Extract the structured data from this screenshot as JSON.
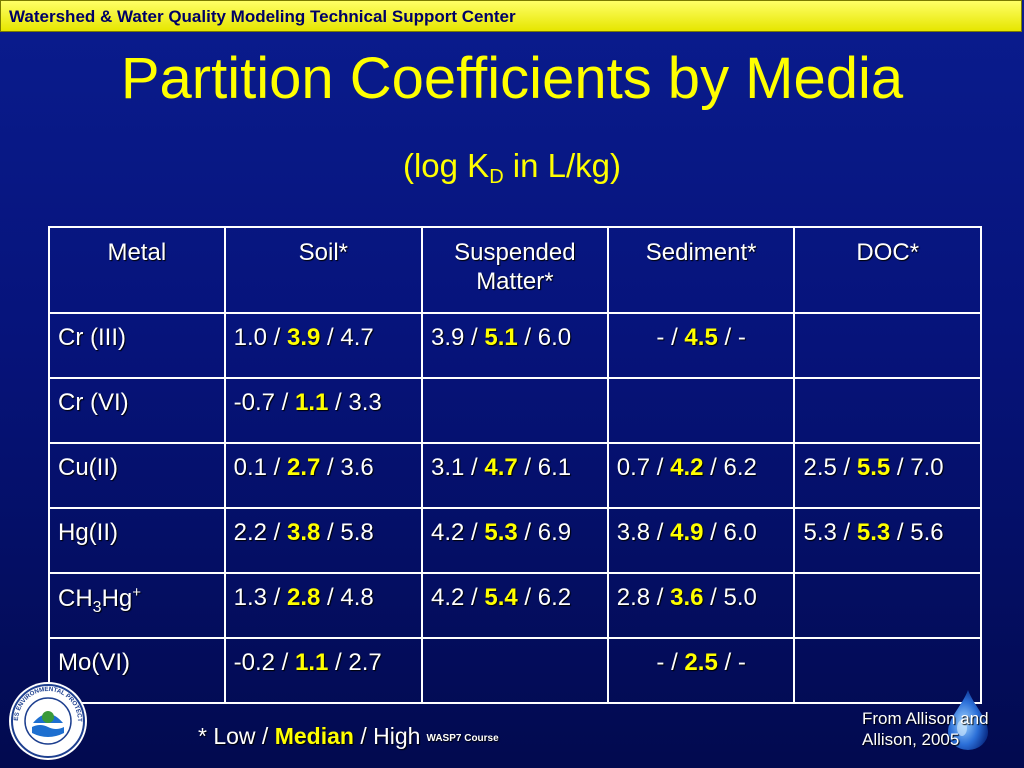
{
  "banner": {
    "text": "Watershed & Water Quality Modeling Technical Support Center"
  },
  "slide": {
    "title": "Partition Coefficients by Media",
    "subtitle_prefix": "(log K",
    "subtitle_sub": "D",
    "subtitle_suffix": " in L/kg)"
  },
  "table": {
    "headers": [
      "Metal",
      "Soil*",
      "Suspended Matter*",
      "Sediment*",
      "DOC*"
    ],
    "rows": [
      {
        "metal": "Cr (III)",
        "cells": [
          {
            "low": "1.0",
            "median": "3.9",
            "high": "4.7"
          },
          {
            "low": "3.9",
            "median": "5.1",
            "high": "6.0"
          },
          {
            "low": "-",
            "median": "4.5",
            "high": "-"
          },
          null
        ]
      },
      {
        "metal": "Cr (VI)",
        "cells": [
          {
            "low": "-0.7",
            "median": "1.1",
            "high": "3.3"
          },
          null,
          null,
          null
        ]
      },
      {
        "metal": "Cu(II)",
        "cells": [
          {
            "low": "0.1",
            "median": "2.7",
            "high": "3.6"
          },
          {
            "low": "3.1",
            "median": "4.7",
            "high": "6.1"
          },
          {
            "low": "0.7",
            "median": "4.2",
            "high": "6.2"
          },
          {
            "low": "2.5",
            "median": "5.5",
            "high": "7.0"
          }
        ]
      },
      {
        "metal": "Hg(II)",
        "cells": [
          {
            "low": "2.2",
            "median": "3.8",
            "high": "5.8"
          },
          {
            "low": "4.2",
            "median": "5.3",
            "high": "6.9"
          },
          {
            "low": "3.8",
            "median": "4.9",
            "high": "6.0"
          },
          {
            "low": "5.3",
            "median": "5.3",
            "high": "5.6"
          }
        ]
      },
      {
        "metal_parts": [
          "CH",
          "3",
          "Hg",
          "+"
        ],
        "cells": [
          {
            "low": "1.3",
            "median": "2.8",
            "high": "4.8"
          },
          {
            "low": "4.2",
            "median": "5.4",
            "high": "6.2"
          },
          {
            "low": "2.8",
            "median": "3.6",
            "high": "5.0"
          },
          null
        ]
      },
      {
        "metal": "Mo(VI)",
        "cells": [
          {
            "low": "-0.2",
            "median": "1.1",
            "high": "2.7"
          },
          null,
          {
            "low": "-",
            "median": "2.5",
            "high": "-"
          },
          null
        ]
      }
    ],
    "separator": " / "
  },
  "footer": {
    "legend_low": "* Low / ",
    "legend_median": "Median",
    "legend_high": " / High",
    "course": "WASP7 Course",
    "source_line1": "From Allison and",
    "source_line2": "Allison, 2005",
    "seal_text": "UNITED STATES ENVIRONMENTAL PROTECTION AGENCY"
  },
  "colors": {
    "accent": "#ffff00",
    "background": "#06137a",
    "banner": "#ffff33"
  },
  "icons": {
    "seal": "epa-seal-icon",
    "drop": "water-drop-icon"
  }
}
